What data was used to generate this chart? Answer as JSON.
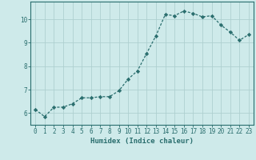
{
  "x": [
    0,
    1,
    2,
    3,
    4,
    5,
    6,
    7,
    8,
    9,
    10,
    11,
    12,
    13,
    14,
    15,
    16,
    17,
    18,
    19,
    20,
    21,
    22,
    23
  ],
  "y": [
    6.15,
    5.85,
    6.25,
    6.25,
    6.4,
    6.65,
    6.65,
    6.7,
    6.7,
    6.95,
    7.45,
    7.8,
    8.55,
    9.3,
    10.2,
    10.15,
    10.35,
    10.25,
    10.1,
    10.15,
    9.75,
    9.45,
    9.1,
    9.35
  ],
  "line_color": "#2a6e6e",
  "marker": "D",
  "marker_size": 2.2,
  "bg_color": "#ceeaea",
  "grid_color": "#aed0d0",
  "xlabel": "Humidex (Indice chaleur)",
  "ylim": [
    5.5,
    10.75
  ],
  "xlim": [
    -0.5,
    23.5
  ],
  "yticks": [
    6,
    7,
    8,
    9,
    10
  ],
  "xticks": [
    0,
    1,
    2,
    3,
    4,
    5,
    6,
    7,
    8,
    9,
    10,
    11,
    12,
    13,
    14,
    15,
    16,
    17,
    18,
    19,
    20,
    21,
    22,
    23
  ],
  "tick_label_size": 5.5,
  "xlabel_size": 6.5,
  "tick_color": "#2a6e6e",
  "axis_color": "#2a6e6e"
}
